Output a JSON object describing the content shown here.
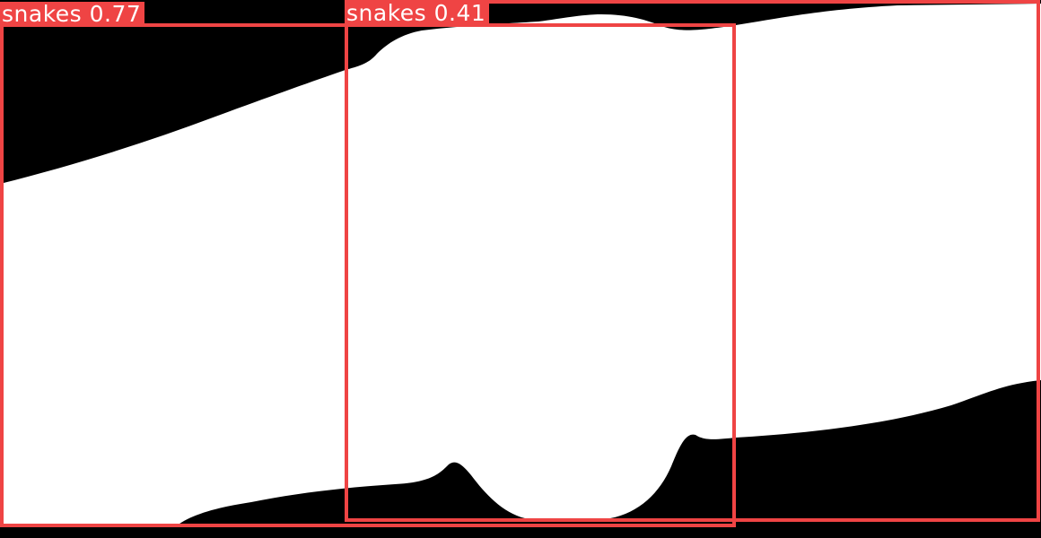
{
  "colors": {
    "background": "#000000",
    "mask": "#FFFFFF",
    "box": "#EF4444",
    "label_text": "#FFFFFF"
  },
  "detections": [
    {
      "class_label": "snakes",
      "score": "0.77"
    },
    {
      "class_label": "snakes",
      "score": "0.41"
    }
  ]
}
